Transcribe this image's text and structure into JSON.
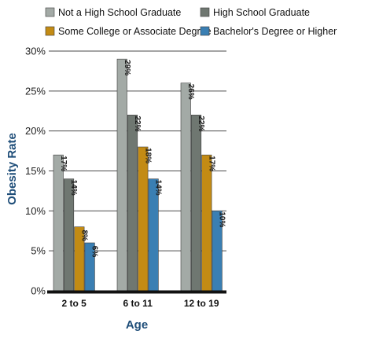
{
  "chart_data": {
    "type": "bar",
    "categories": [
      "2 to 5",
      "6 to 11",
      "12 to 19"
    ],
    "series": [
      {
        "name": "Not a High School Graduate",
        "values": [
          17,
          29,
          26
        ],
        "color": "#a3aaa6"
      },
      {
        "name": "High School Graduate",
        "values": [
          14,
          22,
          22
        ],
        "color": "#6f7771"
      },
      {
        "name": "Some College or Associate Degree",
        "values": [
          8,
          18,
          17
        ],
        "color": "#c38b14"
      },
      {
        "name": "Bachelor's Degree or Higher",
        "values": [
          6,
          14,
          10
        ],
        "color": "#3a7fb3"
      }
    ],
    "data_labels": [
      [
        "17%",
        "29%",
        "26%"
      ],
      [
        "14%",
        "22%",
        "22%"
      ],
      [
        "8%",
        "18%",
        "17%"
      ],
      [
        "6%",
        "14%",
        "10%"
      ]
    ],
    "y_ticks": [
      "0%",
      "5%",
      "10%",
      "15%",
      "20%",
      "25%",
      "30%"
    ],
    "ylim": [
      0,
      30
    ],
    "xlabel": "Age",
    "ylabel": "Obesity Rate",
    "grid": true,
    "legend_position": "top"
  }
}
